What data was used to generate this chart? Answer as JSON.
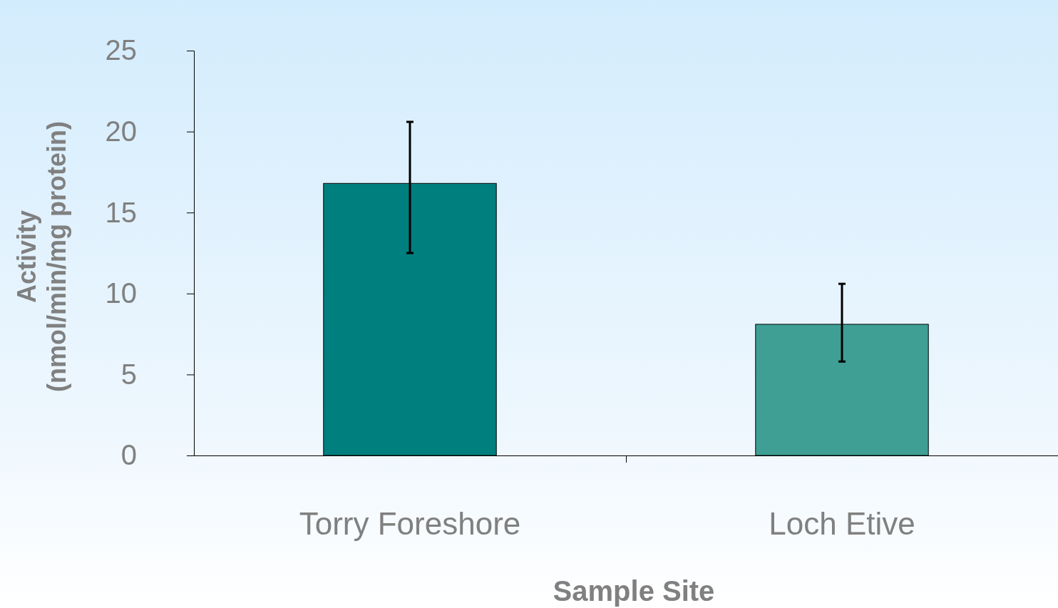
{
  "chart_data": {
    "type": "bar",
    "xlabel": "Sample Site",
    "ylabel": "Activity\n(nmol/min/mg protein)",
    "categories": [
      "Torry Foreshore",
      "Loch Etive"
    ],
    "values": [
      16.8,
      8.1
    ],
    "colors": [
      "#007f7f",
      "#3f9f95"
    ],
    "errors": [
      [
        12.5,
        20.6
      ],
      [
        5.8,
        10.6
      ]
    ],
    "ylim": [
      0,
      25
    ],
    "yticks": [
      0,
      5,
      10,
      15,
      20,
      25
    ],
    "grid": false
  }
}
